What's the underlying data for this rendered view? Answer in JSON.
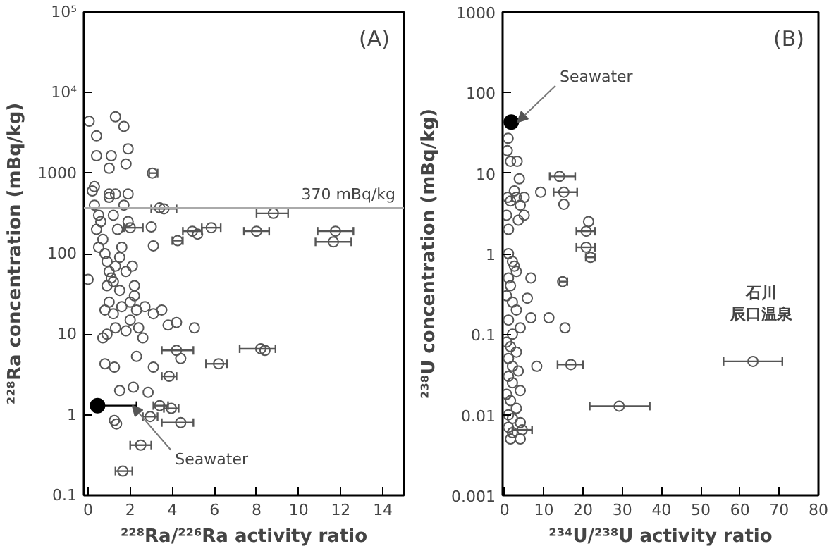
{
  "chart_data": [
    {
      "type": "scatter",
      "title": "(A)",
      "xlabel": "²²⁸Ra/²²⁶Ra activity ratio",
      "ylabel": "²²⁸Ra concentration (mBq/kg)",
      "log": "y",
      "xlim": [
        -0.2,
        15
      ],
      "ylim": [
        0.1,
        100000
      ],
      "xticks": [
        0,
        2,
        4,
        6,
        8,
        10,
        12,
        14
      ],
      "yticks": [
        0.1,
        1,
        10,
        100,
        1000,
        {
          "value": 10000,
          "label": "10⁴"
        },
        {
          "value": 100000,
          "label": "10⁵"
        }
      ],
      "grid": false,
      "marker": "circle",
      "ref_lines": [
        {
          "axis": "y",
          "value": 370,
          "label": "370 mBq/kg",
          "color": "#aaaaaa"
        }
      ],
      "annotations": [
        {
          "text": "Seawater",
          "x": 1.8,
          "y": 1.3
        }
      ],
      "series": [
        {
          "color": "#555555",
          "x": [
            0.05,
            0.4,
            0.4,
            1.1,
            1.0,
            1.3,
            1.7,
            1.9,
            1.8,
            3.05,
            0.3,
            1.0,
            1.9,
            3.4,
            3.6,
            8.8,
            8.0,
            11.75,
            11.65,
            5.85,
            4.95,
            5.2,
            4.25,
            3.1,
            3.0,
            2.0,
            0.2,
            0.3,
            0.5,
            0.6,
            0.4,
            0.7,
            0.5,
            0.8,
            0.9,
            1.0,
            1.1,
            1.2,
            0.9,
            1.3,
            1.5,
            1.6,
            1.4,
            1.2,
            1.0,
            1.3,
            1.7,
            1.9,
            1.5,
            1.0,
            0.8,
            1.2,
            1.6,
            2.0,
            2.3,
            2.7,
            3.1,
            3.5,
            2.0,
            1.3,
            0.9,
            1.8,
            2.6,
            2.4,
            3.8,
            4.2,
            0.7,
            2.2,
            2.2,
            1.8,
            2.1,
            0.0,
            5.05,
            4.2,
            4.4,
            8.4,
            8.2,
            6.2,
            3.85,
            3.1,
            2.3,
            0.8,
            1.25,
            2.15,
            1.5,
            2.85,
            3.4,
            3.95,
            2.95,
            4.4,
            1.25,
            1.35,
            2.5,
            1.65
          ],
          "values": [
            4400,
            2900,
            1640,
            1640,
            1150,
            5000,
            3800,
            2000,
            1300,
            1000,
            680,
            550,
            550,
            370,
            360,
            316,
            190,
            190,
            140,
            210,
            190,
            175,
            145,
            125,
            215,
            210,
            600,
            400,
            300,
            250,
            200,
            150,
            120,
            100,
            80,
            60,
            50,
            45,
            40,
            70,
            90,
            120,
            200,
            300,
            500,
            550,
            400,
            250,
            35,
            25,
            20,
            18,
            22,
            25,
            20,
            22,
            18,
            20,
            15,
            12,
            10,
            11,
            9,
            12,
            13,
            14,
            9,
            30,
            40,
            60,
            70,
            48,
            12,
            6.3,
            5,
            6.3,
            6.6,
            4.3,
            3.0,
            3.9,
            5.3,
            4.3,
            3.9,
            2.2,
            2.0,
            1.9,
            1.3,
            1.2,
            0.95,
            0.8,
            0.85,
            0.77,
            0.42,
            0.2
          ],
          "xerrors": [
            null,
            null,
            null,
            null,
            null,
            null,
            null,
            null,
            null,
            [
              2.9,
              3.3
            ],
            null,
            null,
            null,
            null,
            [
              3.0,
              4.2
            ],
            [
              8.0,
              9.5
            ],
            [
              7.4,
              8.6
            ],
            [
              10.9,
              12.6
            ],
            [
              10.8,
              12.5
            ],
            [
              5.4,
              6.3
            ],
            [
              4.5,
              5.4
            ],
            null,
            [
              4.0,
              4.5
            ],
            null,
            null,
            [
              1.7,
              2.6
            ],
            null,
            null,
            null,
            null,
            null,
            null,
            null,
            null,
            null,
            null,
            null,
            null,
            null,
            null,
            null,
            null,
            null,
            null,
            null,
            null,
            null,
            null,
            null,
            null,
            null,
            null,
            null,
            null,
            null,
            null,
            null,
            null,
            null,
            null,
            null,
            null,
            null,
            null,
            null,
            null,
            null,
            null,
            null,
            null,
            null,
            null,
            null,
            [
              3.5,
              5.0
            ],
            null,
            null,
            [
              7.2,
              8.9
            ],
            [
              5.6,
              6.6
            ],
            [
              3.5,
              4.2
            ],
            null,
            null,
            null,
            null,
            null,
            null,
            null,
            [
              3.1,
              3.8
            ],
            [
              3.6,
              4.3
            ],
            [
              2.6,
              3.3
            ],
            [
              3.5,
              5.0
            ],
            null,
            null,
            [
              2.0,
              3.0
            ],
            [
              1.3,
              2.1
            ]
          ]
        },
        {
          "color": "#000000",
          "x": [
            0.45
          ],
          "values": [
            1.3
          ],
          "xerrors": [
            [
              0.4,
              2.3
            ]
          ]
        }
      ]
    },
    {
      "type": "scatter",
      "title": "(B)",
      "xlabel": "²³⁴U/²³⁸U activity ratio",
      "ylabel": "²³⁸U concentration (mBq/kg)",
      "log": "y",
      "xlim": [
        -0.5,
        80
      ],
      "ylim": [
        0.001,
        1000
      ],
      "xticks": [
        0,
        10,
        20,
        30,
        40,
        50,
        60,
        70,
        80
      ],
      "yticks": [
        0.001,
        0.01,
        0.1,
        1,
        10,
        100,
        1000
      ],
      "grid": false,
      "marker": "circle",
      "annotations": [
        {
          "text": "Seawater",
          "x": 1.7,
          "y": 43
        },
        "石川",
        "辰口温泉"
      ],
      "series": [
        {
          "color": "#555555",
          "x": [
            14,
            15.1,
            15.1,
            20.8,
            21.4,
            20.8,
            21.9,
            16.9,
            29.2,
            63.3,
            14.8,
            4.5,
            0.5,
            1,
            0.8,
            1.5,
            2.5,
            3,
            4,
            5,
            5,
            3.5,
            1,
            2,
            2.5,
            3,
            1,
            1.5,
            0.5,
            2,
            3,
            1,
            4,
            2,
            0.5,
            1.5,
            3,
            1,
            2,
            3.5,
            1,
            2,
            4,
            0.5,
            1.5,
            3,
            1,
            2,
            4,
            1,
            2,
            4,
            1.5,
            5.8,
            6.7,
            6.7,
            11.3,
            15.4,
            8.2,
            9.2,
            3.75,
            0.9,
            0.7,
            1.5,
            3.2
          ],
          "values": [
            9.1,
            5.8,
            4.1,
            1.9,
            2.5,
            1.2,
            0.9,
            0.042,
            0.0128,
            0.046,
            0.45,
            0.0065,
            3,
            2,
            5,
            4.5,
            6,
            5,
            4,
            5,
            3,
            2.6,
            1,
            0.8,
            0.7,
            0.6,
            0.5,
            0.4,
            0.3,
            0.25,
            0.2,
            0.15,
            0.12,
            0.1,
            0.08,
            0.07,
            0.06,
            0.05,
            0.04,
            0.035,
            0.03,
            0.025,
            0.02,
            0.018,
            0.015,
            0.012,
            0.01,
            0.009,
            0.008,
            0.007,
            0.006,
            0.005,
            0.005,
            0.28,
            0.5,
            0.16,
            0.16,
            0.12,
            0.04,
            5.8,
            8.5,
            27,
            19,
            14,
            14
          ],
          "xerrors": [
            [
              11.5,
              18
            ],
            [
              12.5,
              18.5
            ],
            null,
            [
              18.3,
              23
            ],
            null,
            [
              18.3,
              23
            ],
            [
              20.7,
              23
            ],
            [
              13.5,
              20
            ],
            [
              21.7,
              37
            ],
            [
              55.8,
              70.8
            ],
            [
              14,
              16
            ],
            [
              2,
              7
            ],
            null,
            null,
            null,
            null,
            null,
            null,
            null,
            null,
            null,
            null,
            null,
            null,
            null,
            null,
            null,
            null,
            null,
            null,
            null,
            null,
            null,
            null,
            null,
            null,
            null,
            null,
            null,
            null,
            null,
            null,
            null,
            null,
            null,
            null,
            null,
            null,
            null,
            null,
            null,
            null,
            null,
            null,
            null,
            null,
            null,
            null,
            null,
            null,
            null,
            null,
            null,
            null,
            null
          ]
        },
        {
          "color": "#000000",
          "x": [
            1.7
          ],
          "values": [
            43
          ],
          "xerrors": [
            null
          ]
        }
      ]
    }
  ]
}
